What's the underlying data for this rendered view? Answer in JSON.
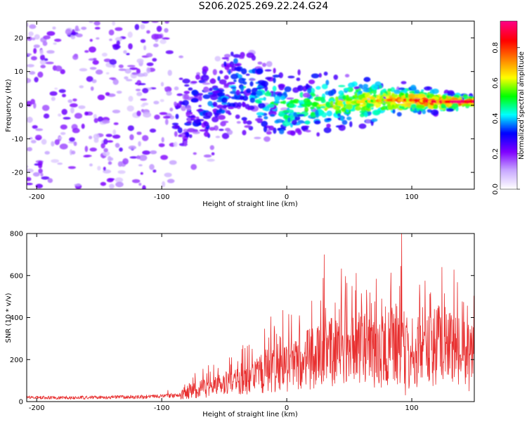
{
  "title": "S206.2025.269.22.24.G24",
  "chart_data": [
    {
      "type": "heatmap",
      "xlabel": "Height of straight line (km)",
      "ylabel": "Frequency (Hz)",
      "xlim": [
        -208,
        150
      ],
      "ylim": [
        -25,
        25
      ],
      "xticks": [
        -200,
        -100,
        0,
        100
      ],
      "xtick_labels": [
        "-200",
        "-100",
        "0",
        "100"
      ],
      "yticks": [
        -20,
        -10,
        0,
        10,
        20
      ],
      "ytick_labels": [
        "-20",
        "-10",
        "0",
        "10",
        "20"
      ],
      "colorbar": {
        "label": "Normalized spectral amplitude",
        "range": [
          0,
          0.95
        ],
        "ticks": [
          0,
          0.2,
          0.4,
          0.6,
          0.8
        ],
        "tick_labels": [
          "0.0",
          "0.2",
          "0.4",
          "0.6",
          "0.8"
        ],
        "colors": [
          "#ffffff",
          "#c8a8ff",
          "#7f00ff",
          "#0000ff",
          "#00ffff",
          "#00ff00",
          "#ffff00",
          "#ff8000",
          "#ff0000",
          "#ff0080"
        ]
      },
      "signal_track": [
        [
          -120,
          1.0
        ],
        [
          -100,
          2.0
        ],
        [
          -80,
          -2.0
        ],
        [
          -60,
          -1.0
        ],
        [
          -40,
          7.0
        ],
        [
          -20,
          2.0
        ],
        [
          0,
          -1.0
        ],
        [
          20,
          0.0
        ],
        [
          40,
          0.5
        ],
        [
          60,
          1.0
        ],
        [
          80,
          1.5
        ],
        [
          100,
          1.5
        ],
        [
          120,
          1.0
        ],
        [
          150,
          1.0
        ]
      ]
    },
    {
      "type": "line",
      "xlabel": "Height of straight line (km)",
      "ylabel": "SNR (10 * v/v)",
      "xlim": [
        -208,
        150
      ],
      "ylim": [
        0,
        800
      ],
      "xticks": [
        -200,
        -100,
        0,
        100
      ],
      "xtick_labels": [
        "-200",
        "-100",
        "0",
        "100"
      ],
      "yticks": [
        0,
        200,
        400,
        600,
        800
      ],
      "ytick_labels": [
        "0",
        "200",
        "400",
        "600",
        "800"
      ],
      "line_color": "#e83030",
      "envelope_x": [
        -208,
        -180,
        -150,
        -120,
        -100,
        -85,
        -75,
        -60,
        -40,
        -20,
        -10,
        0,
        10,
        20,
        30,
        40,
        50,
        60,
        70,
        80,
        90,
        100,
        110,
        120,
        130,
        140,
        150
      ],
      "envelope_y": [
        20,
        18,
        20,
        22,
        25,
        30,
        60,
        80,
        100,
        150,
        180,
        170,
        200,
        230,
        250,
        270,
        260,
        280,
        250,
        270,
        300,
        220,
        240,
        300,
        280,
        250,
        230
      ],
      "peaks": [
        [
          -95,
          55
        ],
        [
          -75,
          115
        ],
        [
          -55,
          160
        ],
        [
          -30,
          270
        ],
        [
          -10,
          360
        ],
        [
          -3,
          435
        ],
        [
          10,
          410
        ],
        [
          20,
          480
        ],
        [
          30,
          700
        ],
        [
          35,
          370
        ],
        [
          42,
          440
        ],
        [
          48,
          565
        ],
        [
          55,
          530
        ],
        [
          64,
          460
        ],
        [
          76,
          490
        ],
        [
          84,
          420
        ],
        [
          92,
          800
        ],
        [
          96,
          400
        ],
        [
          110,
          320
        ],
        [
          118,
          440
        ],
        [
          126,
          515
        ],
        [
          130,
          420
        ],
        [
          138,
          320
        ],
        [
          143,
          260
        ],
        [
          148,
          360
        ]
      ],
      "dips": [
        [
          95,
          30
        ],
        [
          146,
          50
        ],
        [
          80,
          100
        ],
        [
          120,
          150
        ]
      ]
    }
  ]
}
